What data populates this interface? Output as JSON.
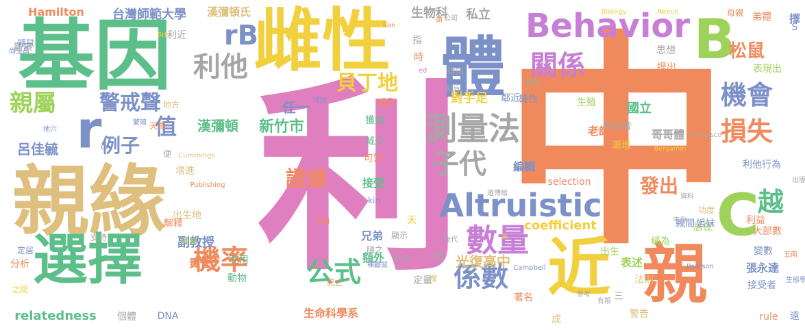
{
  "word_cloud": {
    "background": "#ffffff",
    "palette": {
      "pink": "#e07fc0",
      "orange": "#f08a5d",
      "green": "#5cbf8a",
      "tan": "#dfbf7e",
      "yellow": "#f2cf3d",
      "gray": "#a6a6a6",
      "blue": "#7c91c8",
      "lime": "#9fd25a",
      "violet": "#c77fd6"
    },
    "words": [
      {
        "text": "利",
        "color": "#e07fc0",
        "vertical": false
      },
      {
        "text": "中",
        "color": "#f08a5d",
        "vertical": false
      },
      {
        "text": "基因",
        "color": "#5cbf8a",
        "vertical": false
      },
      {
        "text": "親緣",
        "color": "#dfbf7e",
        "vertical": false
      },
      {
        "text": "雌性",
        "color": "#f2cf3d",
        "vertical": false
      },
      {
        "text": "體",
        "color": "#7c91c8",
        "vertical": false
      },
      {
        "text": "B",
        "color": "#9fd25a",
        "vertical": false
      },
      {
        "text": "近",
        "color": "#f2cf3d",
        "vertical": false
      },
      {
        "text": "親",
        "color": "#f08a5d",
        "vertical": false
      },
      {
        "text": "選擇",
        "color": "#5cbf8a",
        "vertical": false
      },
      {
        "text": "C",
        "color": "#9fd25a",
        "vertical": false
      },
      {
        "text": "Behavior",
        "color": "#c77fd6",
        "vertical": false
      },
      {
        "text": "Altruistic",
        "color": "#7c91c8",
        "vertical": false
      },
      {
        "text": "測量法",
        "color": "#a6a6a6",
        "vertical": false
      },
      {
        "text": "數量",
        "color": "#c77fd6",
        "vertical": false
      },
      {
        "text": "子代",
        "color": "#a6a6a6",
        "vertical": false
      },
      {
        "text": "rB",
        "color": "#7c91c8",
        "vertical": false
      },
      {
        "text": "利他",
        "color": "#a6a6a6",
        "vertical": false
      },
      {
        "text": "r",
        "color": "#7c91c8",
        "vertical": false
      },
      {
        "text": "關係",
        "color": "#c77fd6",
        "vertical": false
      },
      {
        "text": "機會",
        "color": "#7c91c8",
        "vertical": false
      },
      {
        "text": "損失",
        "color": "#f08a5d",
        "vertical": false
      },
      {
        "text": "越",
        "color": "#5cbf8a",
        "vertical": false
      },
      {
        "text": "親屬",
        "color": "#9fd25a",
        "vertical": false
      },
      {
        "text": "值",
        "color": "#7c91c8",
        "vertical": false
      },
      {
        "text": "機率",
        "color": "#f08a5d",
        "vertical": false
      },
      {
        "text": "公式",
        "color": "#5cbf8a",
        "vertical": false
      },
      {
        "text": "係數",
        "color": "#7c91c8",
        "vertical": false
      },
      {
        "text": "證據",
        "color": "#f08a5d",
        "vertical": false
      },
      {
        "text": "貝丁地",
        "color": "#f2cf3d",
        "vertical": false
      },
      {
        "text": "警戒聲",
        "color": "#7c91c8",
        "vertical": false
      },
      {
        "text": "例子",
        "color": "#7c91c8",
        "vertical": false
      },
      {
        "text": "松鼠",
        "color": "#f08a5d",
        "vertical": false
      },
      {
        "text": "發出",
        "color": "#f08a5d",
        "vertical": false
      },
      {
        "text": "新竹市",
        "color": "#5cbf8a",
        "vertical": false
      },
      {
        "text": "漢彌頓",
        "color": "#5cbf8a",
        "vertical": false
      },
      {
        "text": "呂佳毓",
        "color": "#7c91c8",
        "vertical": false
      },
      {
        "text": "副教授",
        "color": "#7c91c8",
        "vertical": false
      },
      {
        "text": "責任",
        "color": "#f08a5d",
        "vertical": false
      },
      {
        "text": "國立",
        "color": "#5cbf8a",
        "vertical": false
      },
      {
        "text": "老師",
        "color": "#f08a5d",
        "vertical": false
      },
      {
        "text": "利他者",
        "color": "#a6a6a6",
        "vertical": false
      },
      {
        "text": "哥哥體",
        "color": "#a6a6a6",
        "vertical": false
      },
      {
        "text": "生物科",
        "color": "#a6a6a6",
        "vertical": false
      },
      {
        "text": "私立",
        "color": "#a6a6a6",
        "vertical": false
      },
      {
        "text": "台灣師範大學",
        "color": "#7c91c8",
        "vertical": false
      },
      {
        "text": "漢彌頓氏",
        "color": "#dfbf7e",
        "vertical": false
      },
      {
        "text": "Hamilton",
        "color": "#f08a5d",
        "vertical": false
      },
      {
        "text": "relatedness",
        "color": "#5cbf8a",
        "vertical": false
      },
      {
        "text": "coefficient",
        "color": "#f2cf3d",
        "vertical": false
      },
      {
        "text": "selection",
        "color": "#f08a5d",
        "vertical": false
      },
      {
        "text": "生命科學系",
        "color": "#f08a5d",
        "vertical": false
      },
      {
        "text": "光復高中",
        "color": "#dfbf7e",
        "vertical": false
      },
      {
        "text": "對手足",
        "color": "#f2cf3d",
        "vertical": false
      },
      {
        "text": "雄性",
        "color": "#7c91c8",
        "vertical": false
      },
      {
        "text": "鄰近",
        "color": "#7c91c8",
        "vertical": false
      },
      {
        "text": "弟體",
        "color": "#f08a5d",
        "vertical": false
      },
      {
        "text": "表現出",
        "color": "#9fd25a",
        "vertical": false
      },
      {
        "text": "利他行為",
        "color": "#7c91c8",
        "vertical": false
      },
      {
        "text": "張永達",
        "color": "#7c91c8",
        "vertical": false
      },
      {
        "text": "接受者",
        "color": "#7c91c8",
        "vertical": false
      },
      {
        "text": "大部數",
        "color": "#f08a5d",
        "vertical": false
      },
      {
        "text": "變數",
        "color": "#7c91c8",
        "vertical": false
      },
      {
        "text": "親間",
        "color": "#7c91c8",
        "vertical": false
      },
      {
        "text": "稱為",
        "color": "#9fd25a",
        "vertical": false
      },
      {
        "text": "利益",
        "color": "#f08a5d",
        "vertical": false
      },
      {
        "text": "表述",
        "color": "#9fd25a",
        "vertical": false
      },
      {
        "text": "法則",
        "color": "#dfbf7e",
        "vertical": false
      },
      {
        "text": "警告",
        "color": "#dfbf7e",
        "vertical": false
      },
      {
        "text": "著名",
        "color": "#f08a5d",
        "vertical": false
      },
      {
        "text": "兄弟",
        "color": "#7c91c8",
        "vertical": false
      },
      {
        "text": "額外",
        "color": "#5cbf8a",
        "vertical": false
      },
      {
        "text": "死亡",
        "color": "#f08a5d",
        "vertical": false
      },
      {
        "text": "定量",
        "color": "#a6a6a6",
        "vertical": false
      },
      {
        "text": "編輯",
        "color": "#7c91c8",
        "vertical": false
      },
      {
        "text": "接受",
        "color": "#5cbf8a",
        "vertical": false
      },
      {
        "text": "可知",
        "color": "#f08a5d",
        "vertical": false
      },
      {
        "text": "減少",
        "color": "#5cbf8a",
        "vertical": false
      },
      {
        "text": "獲益",
        "color": "#5cbf8a",
        "vertical": false
      },
      {
        "text": "哺乳",
        "color": "#f08a5d",
        "vertical": false
      },
      {
        "text": "任一",
        "color": "#7c91c8",
        "vertical": false
      },
      {
        "text": "天擇",
        "color": "#f08a5d",
        "vertical": false
      },
      {
        "text": "動物",
        "color": "#5cbf8a",
        "vertical": false
      },
      {
        "text": "利用",
        "color": "#5cbf8a",
        "vertical": false
      },
      {
        "text": "出生地",
        "color": "#dfbf7e",
        "vertical": false
      },
      {
        "text": "解釋",
        "color": "#f08a5d",
        "vertical": false
      },
      {
        "text": "阿姨",
        "color": "#9fd25a",
        "vertical": false
      },
      {
        "text": "增進",
        "color": "#dfbf7e",
        "vertical": false
      },
      {
        "text": "定居",
        "color": "#7c91c8",
        "vertical": false
      },
      {
        "text": "地方",
        "color": "#dfbf7e",
        "vertical": false
      },
      {
        "text": "觀察",
        "color": "#a6a6a6",
        "vertical": false
      },
      {
        "text": "思想",
        "color": "#a6a6a6",
        "vertical": false
      },
      {
        "text": "提出",
        "color": "#f08a5d",
        "vertical": false
      },
      {
        "text": "居住",
        "color": "#9fd25a",
        "vertical": false
      },
      {
        "text": "姐妹",
        "color": "#7c91c8",
        "vertical": false
      },
      {
        "text": "功度",
        "color": "#dfbf7e",
        "vertical": false
      },
      {
        "text": "母親",
        "color": "#f08a5d",
        "vertical": false
      },
      {
        "text": "擇",
        "color": "#7c91c8",
        "vertical": false
      },
      {
        "text": "遠",
        "color": "#7c91c8",
        "vertical": false
      },
      {
        "text": "rule",
        "color": "#f08a5d",
        "vertical": false
      },
      {
        "text": "DNA",
        "color": "#7c91c8",
        "vertical": false
      },
      {
        "text": "個體",
        "color": "#a6a6a6",
        "vertical": false
      },
      {
        "text": "分析",
        "color": "#f08a5d",
        "vertical": false
      },
      {
        "text": "之間",
        "color": "#f2cf3d",
        "vertical": false
      },
      {
        "text": "支持",
        "color": "#a6a6a6",
        "vertical": false
      },
      {
        "text": "時",
        "color": "#f08a5d",
        "vertical": false
      },
      {
        "text": "指",
        "color": "#a6a6a6",
        "vertical": false
      },
      {
        "text": "得知",
        "color": "#a6a6a6",
        "vertical": false
      },
      {
        "text": "發生",
        "color": "#a6a6a6",
        "vertical": false
      },
      {
        "text": "生殖",
        "color": "#9fd25a",
        "vertical": false
      },
      {
        "text": "漸增",
        "color": "#f2cf3d",
        "vertical": false
      },
      {
        "text": "出生",
        "color": "#9fd25a",
        "vertical": false
      },
      {
        "text": "隨之",
        "color": "#a6a6a6",
        "vertical": false
      },
      {
        "text": "近時",
        "color": "#a6a6a6",
        "vertical": false
      },
      {
        "text": "顯示",
        "color": "#a6a6a6",
        "vertical": false
      },
      {
        "text": "天",
        "color": "#f2cf3d",
        "vertical": false
      },
      {
        "text": "便",
        "color": "#a6a6a6",
        "vertical": false
      },
      {
        "text": "利近",
        "color": "#a6a6a6",
        "vertical": false
      },
      {
        "text": "kin",
        "color": "#7c91c8",
        "vertical": false
      },
      {
        "text": "成",
        "color": "#dfbf7e",
        "vertical": false
      },
      {
        "text": "三",
        "color": "#a6a6a6",
        "vertical": false
      },
      {
        "text": "間",
        "color": "#a6a6a6",
        "vertical": false
      },
      {
        "text": "裸",
        "color": "#dfbf7e",
        "vertical": false
      },
      {
        "text": "Campbell",
        "color": "#7c91c8",
        "vertical": false
      },
      {
        "text": "Pearson",
        "color": "#7c91c8",
        "vertical": false
      },
      {
        "text": "Biology",
        "color": "#f2cf3d",
        "vertical": false
      },
      {
        "text": "Reece",
        "color": "#f2cf3d",
        "vertical": false
      },
      {
        "text": "Benjamin",
        "color": "#f2cf3d",
        "vertical": false
      },
      {
        "text": "Francisco",
        "color": "#a6a6a6",
        "vertical": false
      },
      {
        "text": "Cummings",
        "color": "#dfbf7e",
        "vertical": false
      },
      {
        "text": "Publishing",
        "color": "#f08a5d",
        "vertical": false
      },
      {
        "text": "San",
        "color": "#f08a5d",
        "vertical": false
      },
      {
        "text": "6th",
        "color": "#f2cf3d",
        "vertical": false
      },
      {
        "text": "ed",
        "color": "#c77fd6",
        "vertical": false
      },
      {
        "text": "CA",
        "color": "#7c91c8",
        "vertical": false
      },
      {
        "text": "地穴",
        "color": "#7c91c8",
        "vertical": false
      },
      {
        "text": "繁殖",
        "color": "#7c91c8",
        "vertical": false
      },
      {
        "text": "增加",
        "color": "#7c91c8",
        "vertical": false
      },
      {
        "text": "鼴鼠",
        "color": "#7c91c8",
        "vertical": false
      },
      {
        "text": "尚玉昌",
        "color": "#7c91c8",
        "vertical": false
      },
      {
        "text": "請",
        "color": "#f08a5d",
        "vertical": false
      },
      {
        "text": "公司",
        "color": "#a6a6a6",
        "vertical": false
      },
      {
        "text": "鼠后",
        "color": "#a6a6a6",
        "vertical": false
      },
      {
        "text": "遺傳給",
        "color": "#a6a6a6",
        "vertical": false
      },
      {
        "text": "資料",
        "color": "#a6a6a6",
        "vertical": false
      },
      {
        "text": "不孕",
        "color": "#a6a6a6",
        "vertical": false
      },
      {
        "text": "後代",
        "color": "#a6a6a6",
        "vertical": false
      },
      {
        "text": "裸鼴鼠",
        "color": "#7c91c8",
        "vertical": false
      },
      {
        "text": "參閱",
        "color": "#f08a5d",
        "vertical": false
      },
      {
        "text": "參考",
        "color": "#a6a6a6",
        "vertical": false
      },
      {
        "text": "有限",
        "color": "#a6a6a6",
        "vertical": false
      },
      {
        "text": "出版",
        "color": "#a6a6a6",
        "vertical": false
      },
      {
        "text": "五南",
        "color": "#f08a5d",
        "vertical": false
      },
      {
        "text": "生態學",
        "color": "#7c91c8",
        "vertical": false
      },
      {
        "text": "編",
        "color": "#f2cf3d",
        "vertical": false
      },
      {
        "text": "S",
        "color": "#7c91c8",
        "vertical": false
      }
    ]
  }
}
